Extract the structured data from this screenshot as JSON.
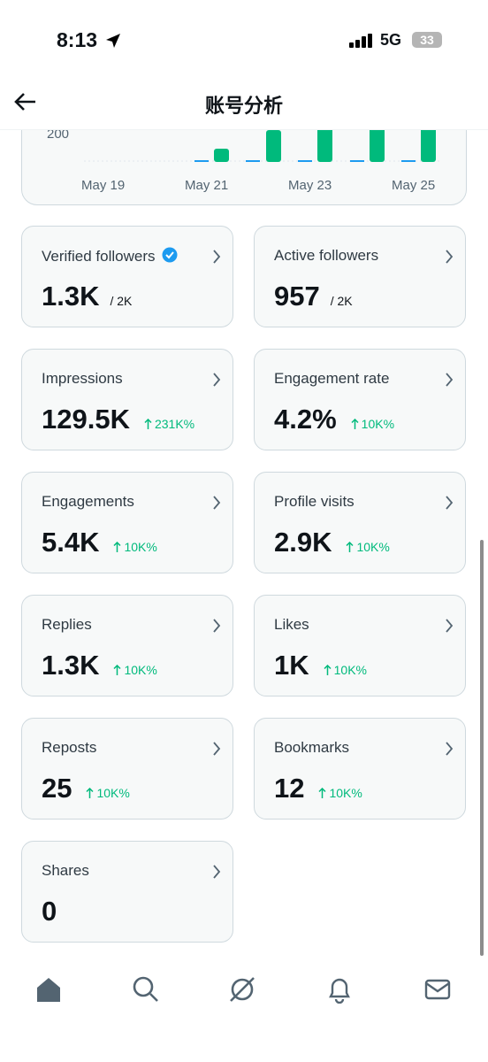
{
  "status_bar": {
    "time": "8:13",
    "network": "5G",
    "battery": "33"
  },
  "header": {
    "title": "账号分析"
  },
  "chart": {
    "yticks": [
      200
    ],
    "x_labels": [
      "May 19",
      "May 21",
      "May 23",
      "May 25"
    ]
  },
  "metrics": [
    {
      "label": "Verified followers",
      "value": "1.3K",
      "total": "/ 2K"
    },
    {
      "label": "Active followers",
      "value": "957",
      "total": "/ 2K"
    },
    {
      "label": "Impressions",
      "value": "129.5K",
      "change": "231K%"
    },
    {
      "label": "Engagement rate",
      "value": "4.2%",
      "change": "10K%"
    },
    {
      "label": "Engagements",
      "value": "5.4K",
      "change": "10K%"
    },
    {
      "label": "Profile visits",
      "value": "2.9K",
      "change": "10K%"
    },
    {
      "label": "Replies",
      "value": "1.3K",
      "change": "10K%"
    },
    {
      "label": "Likes",
      "value": "1K",
      "change": "10K%"
    },
    {
      "label": "Reposts",
      "value": "25",
      "change": "10K%"
    },
    {
      "label": "Bookmarks",
      "value": "12",
      "change": "10K%"
    },
    {
      "label": "Shares",
      "value": "0"
    }
  ]
}
